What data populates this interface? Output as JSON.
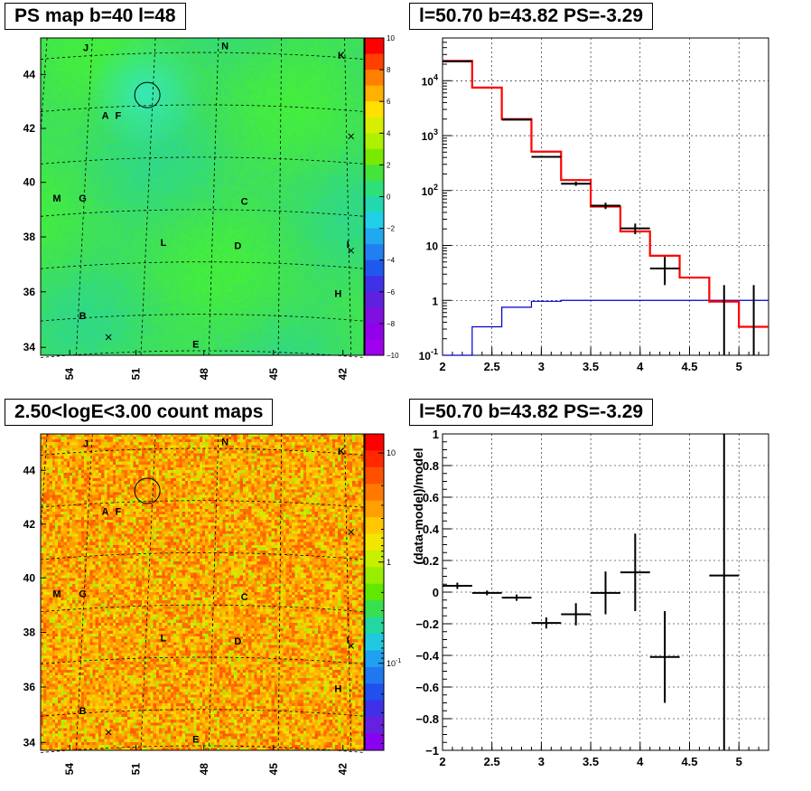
{
  "titles": {
    "ps_map": "PS map b=40 l=48",
    "spectrum": "l=50.70 b=43.82 PS=-3.29",
    "count_map": "2.50<logE<3.00 count maps",
    "residual": "l=50.70 b=43.82 PS=-3.29"
  },
  "chart_data": [
    {
      "type": "heatmap",
      "title": "PS map b=40 l=48",
      "x_ticks": [
        "54",
        "51",
        "48",
        "45",
        "42"
      ],
      "y_ticks": [
        "34",
        "36",
        "38",
        "40",
        "42",
        "44"
      ],
      "color_scale": {
        "min": -10,
        "max": 10,
        "ticks": [
          "10",
          "8",
          "6",
          "4",
          "2",
          "0",
          "−2",
          "−4",
          "−6",
          "−8",
          "−10"
        ]
      },
      "source_labels": [
        "J",
        "N",
        "K",
        "A",
        "F",
        "M",
        "G",
        "C",
        "L",
        "D",
        "I",
        "H",
        "B",
        "E"
      ],
      "markers": [
        "circle",
        "x",
        "x",
        "x"
      ],
      "colors": {
        "base": "#3ee05a",
        "high": "#44ee3c",
        "low": "#2fd889",
        "circle_region": "#36e8c0"
      }
    },
    {
      "type": "line",
      "title": "l=50.70 b=43.82 PS=-3.29",
      "x_ticks": [
        "2",
        "2.5",
        "3",
        "3.5",
        "4",
        "4.5",
        "5"
      ],
      "y_ticks": [
        "10^-1",
        "1",
        "10",
        "10^2",
        "10^3",
        "10^4"
      ],
      "xlim": [
        2,
        5.3
      ],
      "ylim": [
        0.1,
        60000
      ],
      "y_scale": "log",
      "grid": true,
      "bin_edges": [
        2,
        2.3,
        2.6,
        2.9,
        3.2,
        3.5,
        3.8,
        4.1,
        4.4,
        4.7,
        5.0,
        5.3
      ],
      "series": [
        {
          "color": "#ff0000",
          "values": [
            23000,
            7500,
            2000,
            510,
            155,
            51,
            18,
            6.5,
            2.6,
            0.95,
            0.33
          ]
        },
        {
          "color": "#0000cc",
          "values": [
            0.1,
            0.33,
            0.75,
            0.96,
            1,
            1,
            1,
            1,
            1,
            1,
            1
          ]
        },
        {
          "color": "#000000",
          "points": [
            {
              "x": 2.15,
              "y": 22500,
              "ylo": 22200,
              "yhi": 22800
            },
            {
              "x": 2.75,
              "y": 1950,
              "ylo": 1900,
              "yhi": 2000
            },
            {
              "x": 3.05,
              "y": 410,
              "ylo": 395,
              "yhi": 425
            },
            {
              "x": 3.35,
              "y": 133,
              "ylo": 122,
              "yhi": 145
            },
            {
              "x": 3.65,
              "y": 53,
              "ylo": 46,
              "yhi": 60
            },
            {
              "x": 3.95,
              "y": 20.5,
              "ylo": 16,
              "yhi": 25
            },
            {
              "x": 4.25,
              "y": 3.8,
              "ylo": 1.9,
              "yhi": 6.2
            },
            {
              "x": 4.85,
              "y": 0.1,
              "ylo": 0.1,
              "yhi": 1.9
            },
            {
              "x": 5.15,
              "y": 0.1,
              "ylo": 0.1,
              "yhi": 1.9
            }
          ]
        }
      ]
    },
    {
      "type": "heatmap",
      "title": "2.50<logE<3.00 count maps",
      "x_ticks": [
        "54",
        "51",
        "48",
        "45",
        "42"
      ],
      "y_ticks": [
        "34",
        "36",
        "38",
        "40",
        "42",
        "44"
      ],
      "color_scale": {
        "scale": "log",
        "ticks": [
          "10",
          "1",
          "10^-1"
        ]
      },
      "source_labels": [
        "J",
        "N",
        "K",
        "A",
        "F",
        "M",
        "G",
        "C",
        "L",
        "D",
        "I",
        "H",
        "B",
        "E"
      ],
      "markers": [
        "circle",
        "x",
        "x",
        "x"
      ],
      "colors": {
        "dominant": [
          "#ff9a00",
          "#ffb400",
          "#ffcd00",
          "#ff7000",
          "#ff5a00",
          "#e3e600",
          "#b5ee00"
        ]
      }
    },
    {
      "type": "scatter",
      "title": "l=50.70 b=43.82 PS=-3.29",
      "ylabel": "(data-model)/model",
      "x_ticks": [
        "2",
        "2.5",
        "3",
        "3.5",
        "4",
        "4.5",
        "5"
      ],
      "y_ticks": [
        "1",
        "0.8",
        "0.6",
        "0.4",
        "0.2",
        "0",
        "−0.2",
        "−0.4",
        "−0.6",
        "−0.8",
        "−1"
      ],
      "xlim": [
        2,
        5.3
      ],
      "ylim": [
        -1,
        1
      ],
      "grid": true,
      "points": [
        {
          "x": 2.15,
          "y": 0.04,
          "ylo": 0.02,
          "yhi": 0.06,
          "xlo": 2.0,
          "xhi": 2.3
        },
        {
          "x": 2.45,
          "y": -0.005,
          "ylo": -0.02,
          "yhi": 0.01,
          "xlo": 2.3,
          "xhi": 2.6
        },
        {
          "x": 2.75,
          "y": -0.035,
          "ylo": -0.055,
          "yhi": -0.015,
          "xlo": 2.6,
          "xhi": 2.9
        },
        {
          "x": 3.05,
          "y": -0.195,
          "ylo": -0.23,
          "yhi": -0.16,
          "xlo": 2.9,
          "xhi": 3.2
        },
        {
          "x": 3.35,
          "y": -0.14,
          "ylo": -0.21,
          "yhi": -0.07,
          "xlo": 3.2,
          "xhi": 3.5
        },
        {
          "x": 3.65,
          "y": -0.005,
          "ylo": -0.14,
          "yhi": 0.13,
          "xlo": 3.5,
          "xhi": 3.8
        },
        {
          "x": 3.95,
          "y": 0.125,
          "ylo": -0.12,
          "yhi": 0.37,
          "xlo": 3.8,
          "xhi": 4.1
        },
        {
          "x": 4.25,
          "y": -0.41,
          "ylo": -0.7,
          "yhi": -0.12,
          "xlo": 4.1,
          "xhi": 4.4
        },
        {
          "x": 4.85,
          "y": 0.105,
          "ylo": -1,
          "yhi": 1,
          "xlo": 4.7,
          "xhi": 5.0
        }
      ]
    }
  ]
}
